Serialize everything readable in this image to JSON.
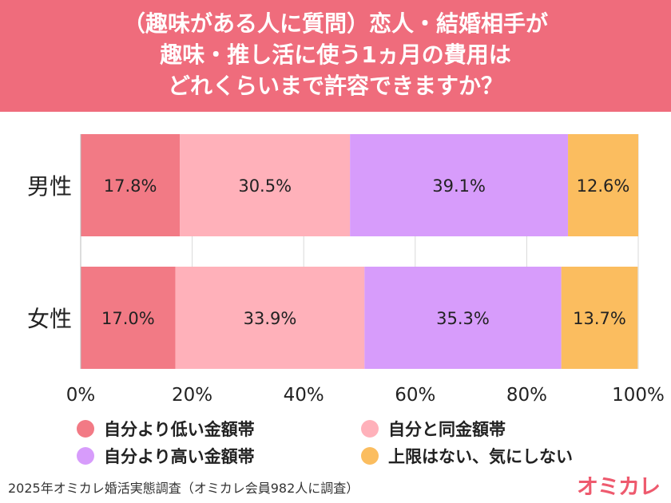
{
  "title_lines": [
    "（趣味がある人に質問）恋人・結婚相手が",
    "趣味・推し活に使う1ヵ月の費用は",
    "どれくらいまで許容できますか？"
  ],
  "chart_data": {
    "type": "bar",
    "orientation": "horizontal",
    "stacked": true,
    "categories": [
      "男性",
      "女性"
    ],
    "series": [
      {
        "name": "自分より低い金額帯",
        "values": [
          17.8,
          17.0
        ],
        "labels": [
          "17.8%",
          "17.0%"
        ],
        "color": "#f27a85"
      },
      {
        "name": "自分と同金額帯",
        "values": [
          30.5,
          33.9
        ],
        "labels": [
          "30.5%",
          "33.9%"
        ],
        "color": "#ffb1ba"
      },
      {
        "name": "自分より高い金額帯",
        "values": [
          39.1,
          35.3
        ],
        "labels": [
          "39.1%",
          "35.3%"
        ],
        "color": "#d79cfb"
      },
      {
        "name": "上限はない、気にしない",
        "values": [
          12.6,
          13.7
        ],
        "labels": [
          "12.6%",
          "13.7%"
        ],
        "color": "#fbbd5f"
      }
    ],
    "xlim": [
      0,
      100
    ],
    "xticks": [
      0,
      20,
      40,
      60,
      80,
      100
    ],
    "xtick_labels": [
      "0%",
      "20%",
      "40%",
      "60%",
      "80%",
      "100%"
    ],
    "grid": true,
    "legend_position": "bottom"
  },
  "legend": [
    {
      "label": "自分より低い金額帯",
      "color": "#f27a85"
    },
    {
      "label": "自分と同金額帯",
      "color": "#ffb1ba"
    },
    {
      "label": "自分より高い金額帯",
      "color": "#d79cfb"
    },
    {
      "label": "上限はない、気にしない",
      "color": "#fbbd5f"
    }
  ],
  "colors": {
    "header": "#ef6c7c",
    "logo": "#ee5a6e"
  },
  "footnote": "2025年オミカレ婚活実態調査（オミカレ会員982人に調査）",
  "logo": "オミカレ"
}
